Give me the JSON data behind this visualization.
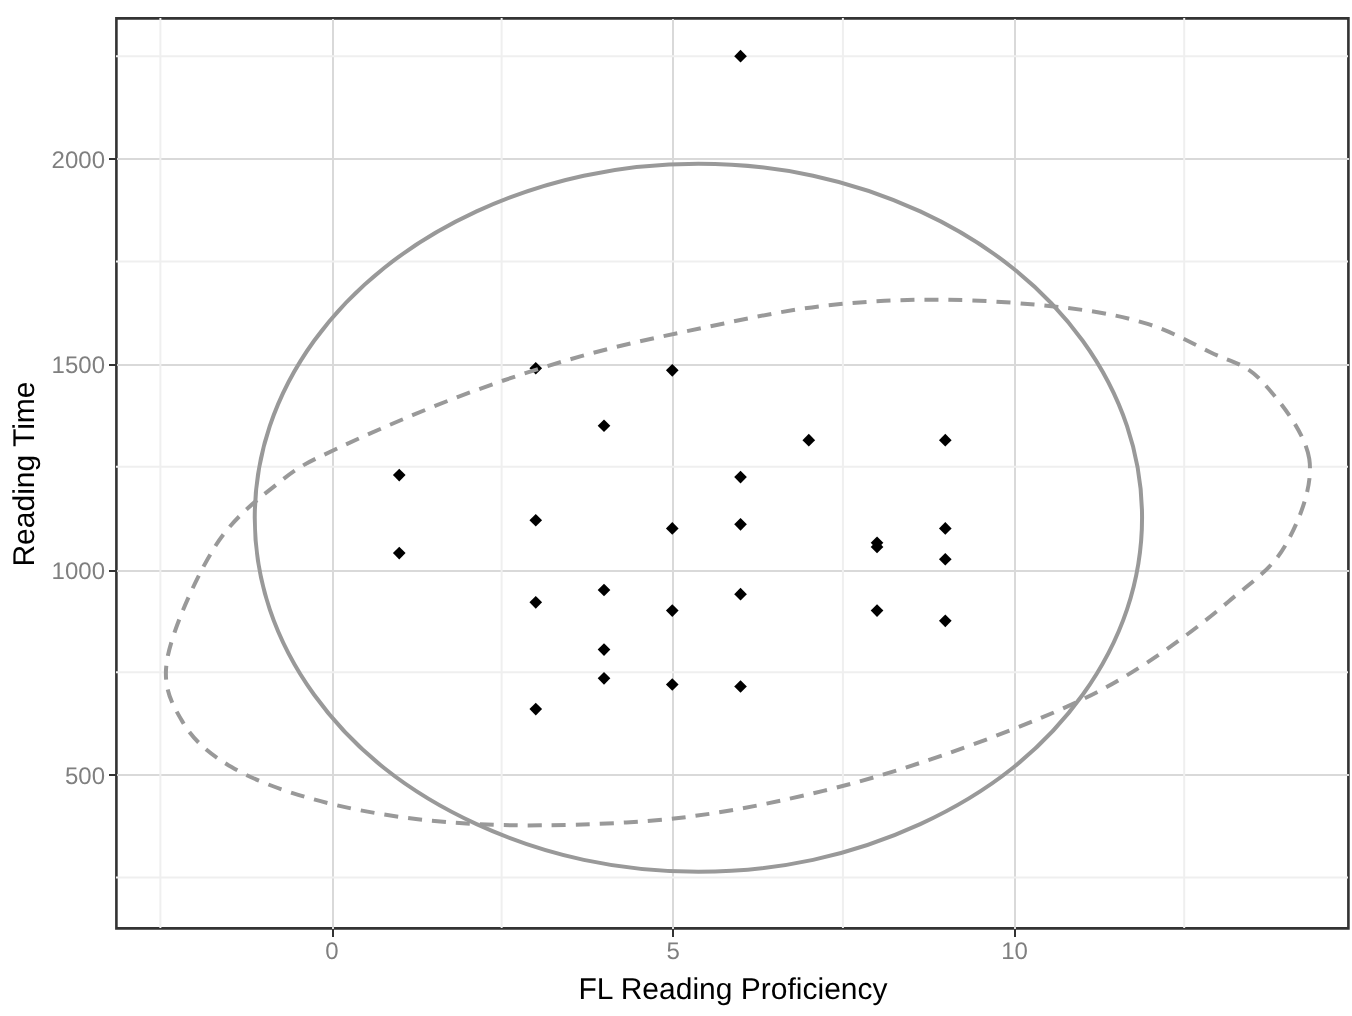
{
  "chart_data": {
    "type": "scatter",
    "xlabel": "FL Reading Proficiency",
    "ylabel": "Reading Time",
    "xlim": [
      -3.15,
      14.9
    ],
    "ylim": [
      127,
      2343
    ],
    "xticks": [
      {
        "value": -2.5,
        "label": null
      },
      0,
      {
        "value": 2.5,
        "label": null
      },
      5,
      {
        "value": 7.5,
        "label": null
      },
      10,
      {
        "value": 12.5,
        "label": null
      }
    ],
    "yticks": [
      {
        "value": 250,
        "label": null
      },
      500,
      {
        "value": 750,
        "label": null
      },
      1000,
      {
        "value": 1250,
        "label": null
      },
      1500,
      {
        "value": 1750,
        "label": null
      },
      2000,
      {
        "value": 2250,
        "label": null
      }
    ],
    "grid": true,
    "marker": "diamond",
    "series": [
      {
        "color": "#000000",
        "x": [
          6,
          1,
          1,
          3,
          3,
          3,
          3,
          4,
          4,
          4,
          4,
          5,
          5,
          5,
          5,
          6,
          6,
          6,
          6,
          7,
          8,
          8,
          8,
          9,
          9,
          9,
          9
        ],
        "values": [
          2250,
          1230,
          1040,
          1490,
          1120,
          920,
          660,
          1350,
          950,
          805,
          735,
          1485,
          1100,
          900,
          720,
          1225,
          1110,
          940,
          715,
          1315,
          1065,
          1055,
          900,
          1315,
          1100,
          1025,
          875
        ]
      }
    ]
  }
}
